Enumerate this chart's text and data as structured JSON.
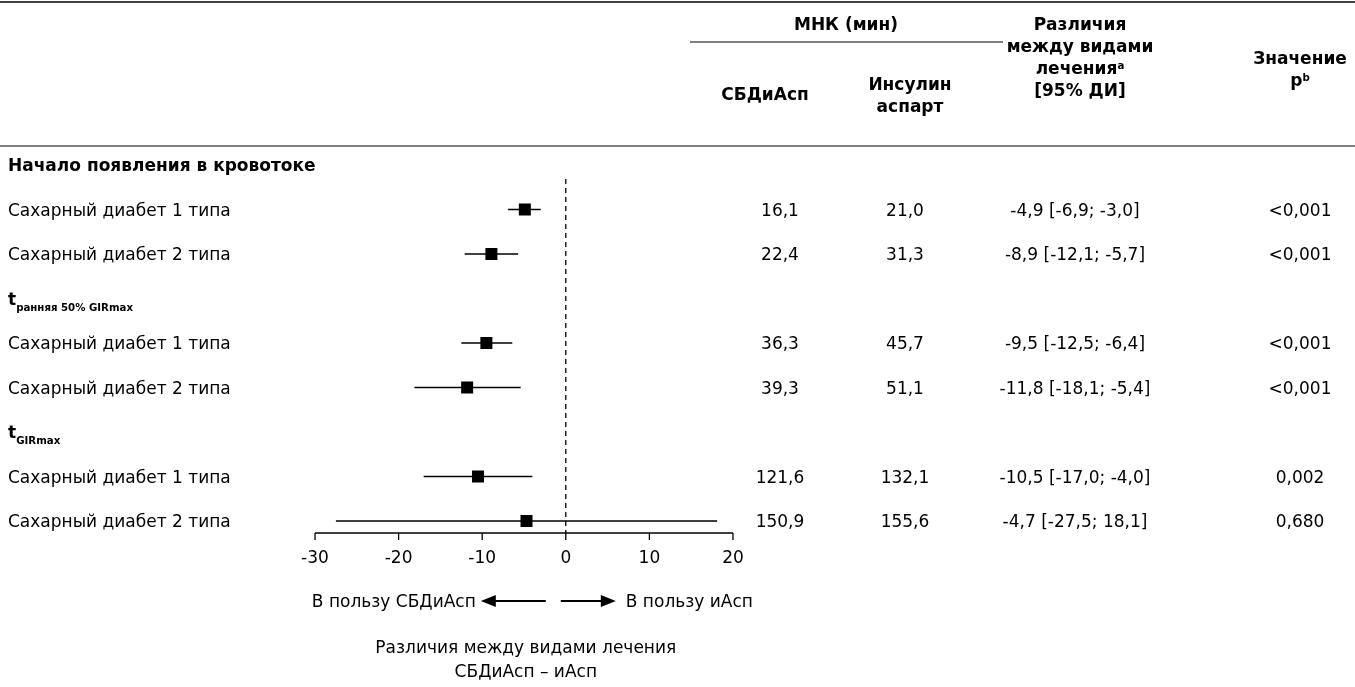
{
  "chart_data": {
    "type": "scatter",
    "categories": [
      "Начало появления в кровотоке",
      "Сахарный диабет 1 типа",
      "Сахарный диабет 2 типа",
      "t$_{ранняя 50% GIRmax}$",
      "Сахарный диабет 1 типа",
      "Сахарный диабет 2 типа",
      "t$_{GIRmax}$",
      "Сахарный диабет 1 типа",
      "Сахарный диабет 2 типа"
    ],
    "orientation": "horizontal",
    "values": [
      null,
      -4.9,
      -8.9,
      null,
      -9.5,
      -11.8,
      null,
      -10.5,
      -4.7
    ],
    "errors": [
      null,
      [
        -6.9,
        -3.0
      ],
      [
        -12.1,
        -5.7
      ],
      null,
      [
        -12.5,
        -6.4
      ],
      [
        -18.1,
        -5.4
      ],
      null,
      [
        -17.0,
        -4.0
      ],
      [
        -27.5,
        18.1
      ]
    ],
    "value_labels": [
      null,
      "-4,9 [-6,9; -3,0]",
      "-8,9 [-12,1; -5,7]",
      null,
      "-9,5 [-12,5; -6,4]",
      "-11,8 [-18,1; -5,4]",
      null,
      "-10,5 [-17,0; -4,0]",
      "-4,7 [-27,5; 18,1]"
    ],
    "color": "#000000",
    "marker": "square",
    "xlim": [
      -30,
      20
    ],
    "xticks": [
      -30,
      -20,
      -10,
      0,
      10,
      20
    ],
    "xlabel": "Различия между видами лечения\nСБДиАсп – иАсп",
    "ref_lines": [
      {
        "axis": "x",
        "value": 0,
        "line_style": "dashed"
      }
    ],
    "annotations": [
      "МНК (мин)",
      "СБДиАсп",
      "Инсулин\nаспарт",
      "Различия\nмежду видами\nлечения$^{a}$\n[95% ДИ]",
      "Значение\np$^{b}$",
      "16,1",
      "21,0",
      "<0,001",
      "22,4",
      "31,3",
      "<0,001",
      "36,3",
      "45,7",
      "<0,001",
      "39,3",
      "51,1",
      "<0,001",
      "121,6",
      "132,1",
      "0,002",
      "150,9",
      "155,6",
      "0,680",
      "В пользу СБДиАсп",
      "В пользу иАсп"
    ],
    "tick_labels": "x"
  }
}
